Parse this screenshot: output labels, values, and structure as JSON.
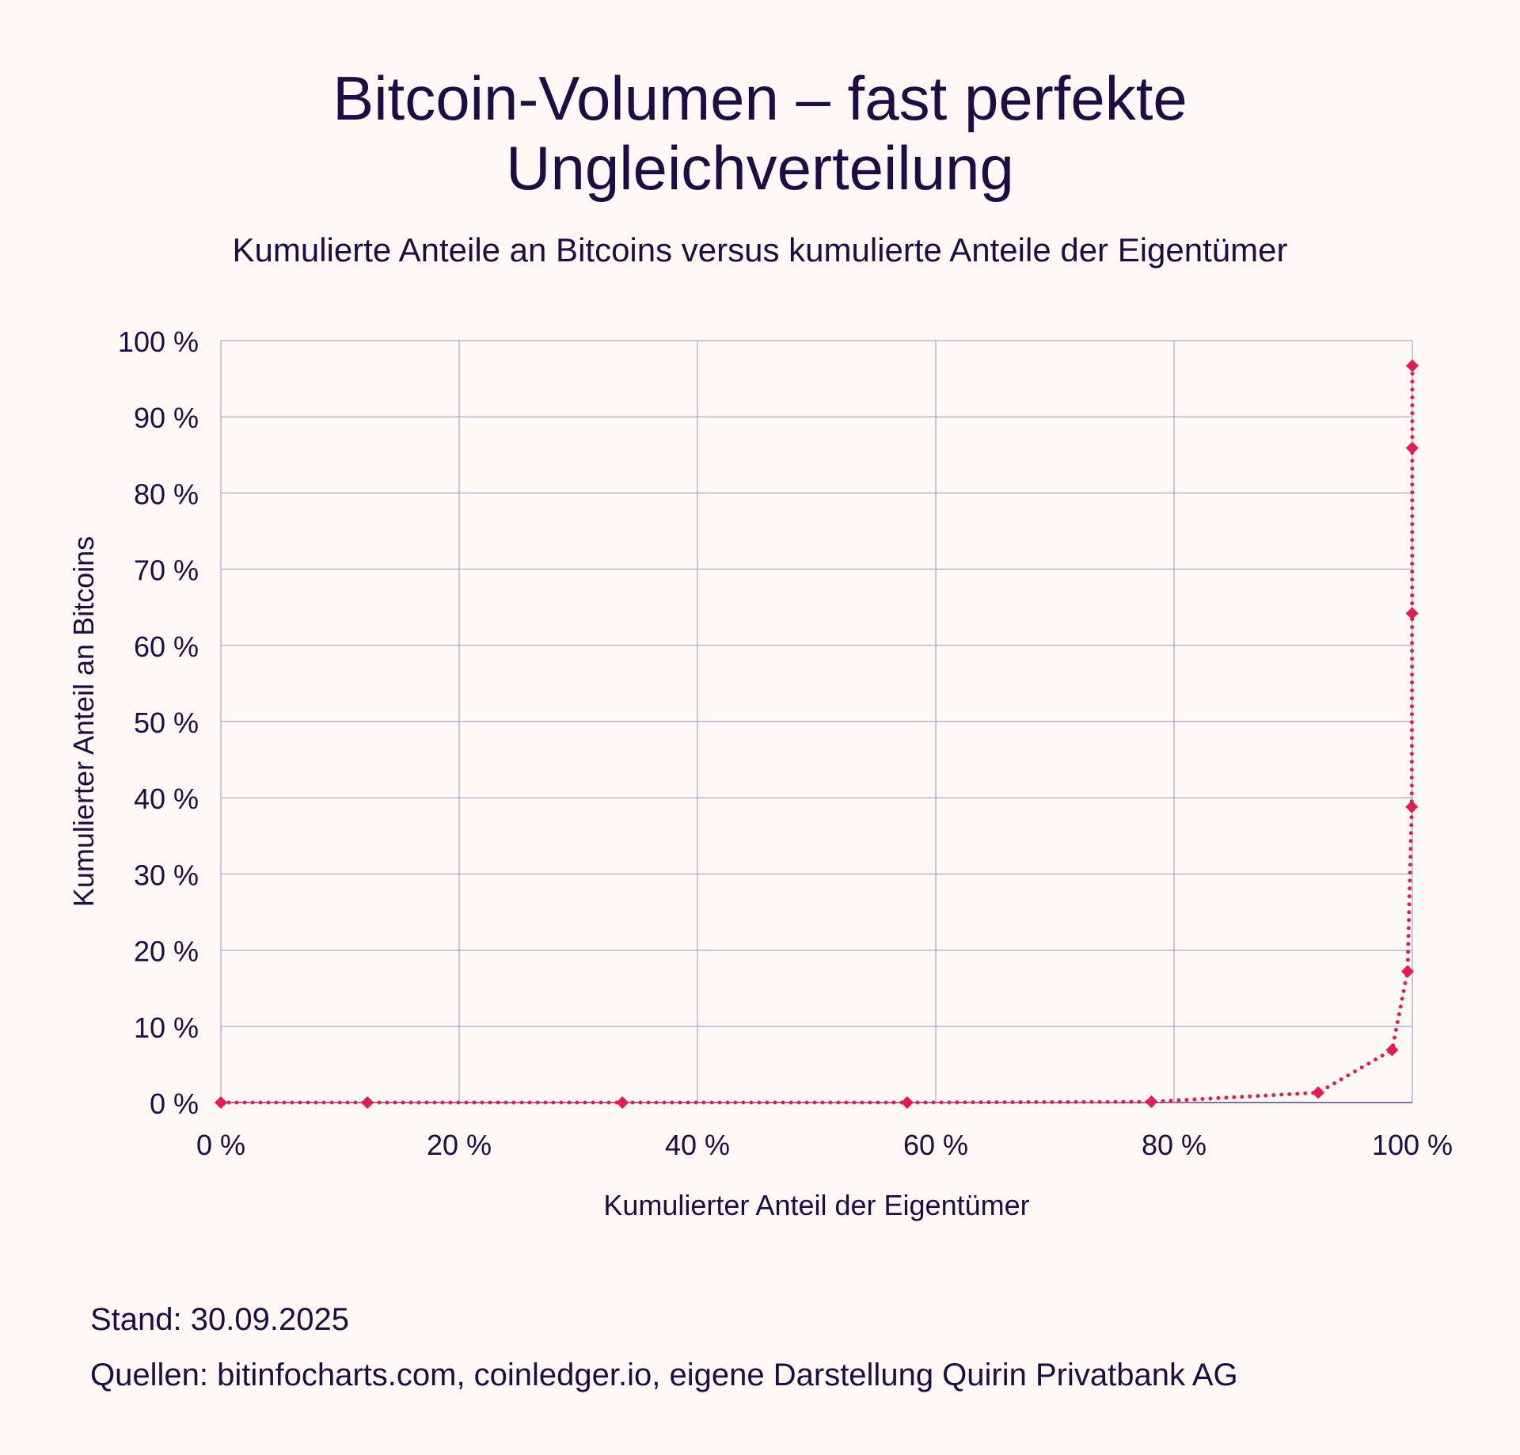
{
  "title_line1": "Bitcoin-Volumen – fast perfekte",
  "title_line2": "Ungleichverteilung",
  "subtitle": "Kumulierte Anteile an Bitcoins versus kumulierte Anteile der Eigentümer",
  "footer": {
    "date": "Stand: 30.09.2025",
    "sources": "Quellen: bitinfocharts.com, coinledger.io, eigene Darstellung Quirin Privatbank AG"
  },
  "colors": {
    "text": "#1a0e45",
    "series": "#e31c54",
    "grid": "#9a93b8",
    "background": "#fcf8f5"
  },
  "chart_data": {
    "type": "line",
    "title": "Bitcoin-Volumen – fast perfekte Ungleichverteilung",
    "xlabel": "Kumulierter Anteil der Eigentümer",
    "ylabel": "Kumulierter Anteil an Bitcoins",
    "xlim": [
      0,
      100
    ],
    "ylim": [
      0,
      100
    ],
    "grid": true,
    "xticks": [
      "0 %",
      "20 %",
      "40 %",
      "60 %",
      "80 %",
      "100 %"
    ],
    "yticks": [
      "0 %",
      "10 %",
      "20 %",
      "30 %",
      "40 %",
      "50 %",
      "60 %",
      "70 %",
      "80 %",
      "90 %",
      "100 %"
    ],
    "series": [
      {
        "name": "Kumulierter Anteil an Bitcoins",
        "line_style": "dotted",
        "marker": "diamond",
        "x": [
          0,
          12.3,
          33.7,
          57.6,
          78.1,
          92.1,
          98.3,
          99.6,
          99.95,
          99.98,
          99.99,
          100
        ],
        "y": [
          0,
          0,
          0,
          0,
          0.1,
          1.3,
          6.9,
          17.2,
          38.8,
          64.2,
          85.9,
          96.7
        ]
      }
    ]
  }
}
